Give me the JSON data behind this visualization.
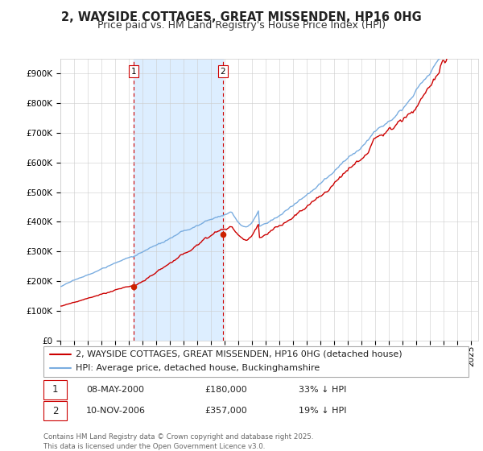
{
  "title": "2, WAYSIDE COTTAGES, GREAT MISSENDEN, HP16 0HG",
  "subtitle": "Price paid vs. HM Land Registry's House Price Index (HPI)",
  "legend_house": "2, WAYSIDE COTTAGES, GREAT MISSENDEN, HP16 0HG (detached house)",
  "legend_hpi": "HPI: Average price, detached house, Buckinghamshire",
  "footnote": "Contains HM Land Registry data © Crown copyright and database right 2025.\nThis data is licensed under the Open Government Licence v3.0.",
  "sale1_date": "08-MAY-2000",
  "sale1_price": "£180,000",
  "sale1_hpi": "33% ↓ HPI",
  "sale2_date": "10-NOV-2006",
  "sale2_price": "£357,000",
  "sale2_hpi": "19% ↓ HPI",
  "sale1_x": 2000.35,
  "sale2_x": 2006.85,
  "sale1_y": 180000,
  "sale2_y": 357000,
  "house_color": "#cc0000",
  "hpi_color": "#7aade0",
  "vline_color": "#cc0000",
  "dot_color": "#cc2200",
  "shade_color": "#ddeeff",
  "ylim": [
    0,
    950000
  ],
  "xlim_start": 1995,
  "xlim_end": 2025.5,
  "background_color": "#ffffff",
  "grid_color": "#cccccc",
  "title_fontsize": 10.5,
  "subtitle_fontsize": 9,
  "tick_fontsize": 7.5,
  "legend_fontsize": 8
}
